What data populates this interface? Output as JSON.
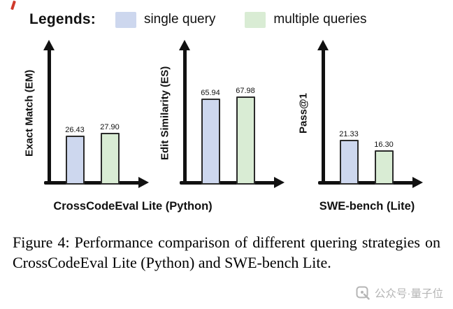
{
  "legend": {
    "title": "Legends:",
    "items": [
      {
        "label": "single query",
        "color": "#cdd7ee"
      },
      {
        "label": "multiple queries",
        "color": "#d9ecd4"
      }
    ]
  },
  "chart_data": [
    {
      "type": "bar",
      "ylabel": "Exact Match (EM)",
      "xlabel": "CrossCodeEval Lite (Python)",
      "categories": [
        "single query",
        "multiple queries"
      ],
      "values": [
        26.43,
        27.9
      ],
      "value_labels": [
        "26.43",
        "27.90"
      ],
      "ylim": [
        0,
        70
      ],
      "grid": false,
      "legend_position": "top"
    },
    {
      "type": "bar",
      "ylabel": "Edit Similarity (ES)",
      "xlabel": "CrossCodeEval Lite (Python)",
      "categories": [
        "single query",
        "multiple queries"
      ],
      "values": [
        65.94,
        67.98
      ],
      "value_labels": [
        "65.94",
        "67.98"
      ],
      "ylim": [
        0,
        100
      ],
      "grid": false,
      "legend_position": "top"
    },
    {
      "type": "bar",
      "ylabel": "Pass@1",
      "xlabel": "SWE-bench (Lite)",
      "categories": [
        "single query",
        "multiple queries"
      ],
      "values": [
        21.33,
        16.3
      ],
      "value_labels": [
        "21.33",
        "16.30"
      ],
      "ylim": [
        0,
        62
      ],
      "grid": false,
      "legend_position": "top"
    }
  ],
  "group_labels": {
    "crosscodeeval": "CrossCodeEval Lite (Python)",
    "swebench": "SWE-bench (Lite)"
  },
  "caption": {
    "label": "Figure 4:",
    "text": "Performance comparison of different quering strategies on CrossCodeEval Lite (Python) and SWE-bench Lite."
  },
  "watermark": {
    "text": "公众号·量子位"
  }
}
